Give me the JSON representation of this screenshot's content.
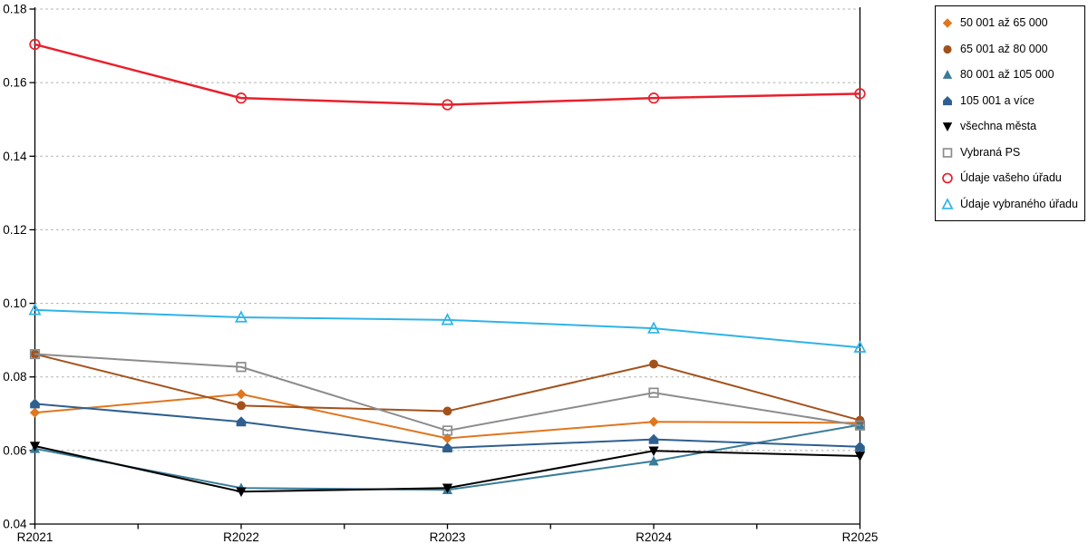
{
  "chart_data": {
    "type": "line",
    "title": "",
    "xlabel": "",
    "ylabel": "",
    "categories": [
      "R2021",
      "R2022",
      "R2023",
      "R2024",
      "R2025"
    ],
    "series": [
      {
        "name": "50 001 až 65 000",
        "marker": "diamond",
        "open": false,
        "color": "#E0761E",
        "values": [
          0.0703,
          0.0753,
          0.0633,
          0.0678,
          0.0675
        ]
      },
      {
        "name": "65 001 až 80 000",
        "marker": "circle",
        "open": false,
        "color": "#A3511C",
        "values": [
          0.0862,
          0.0722,
          0.0707,
          0.0835,
          0.0682
        ]
      },
      {
        "name": "80 001 až 105 000",
        "marker": "triangle-up",
        "open": false,
        "color": "#3A7C99",
        "values": [
          0.0605,
          0.0498,
          0.0493,
          0.0571,
          0.067
        ]
      },
      {
        "name": "105 001 a více",
        "marker": "pentagon",
        "open": false,
        "color": "#2E5F8F",
        "values": [
          0.0727,
          0.0678,
          0.0607,
          0.063,
          0.061
        ]
      },
      {
        "name": "všechna města",
        "marker": "triangle-down",
        "open": false,
        "color": "#000000",
        "values": [
          0.0612,
          0.0488,
          0.0498,
          0.0599,
          0.0585
        ]
      },
      {
        "name": "Vybraná PS",
        "marker": "square",
        "open": true,
        "color": "#8C8C8C",
        "values": [
          0.0862,
          0.0827,
          0.0654,
          0.0757,
          0.0668
        ]
      },
      {
        "name": "Údaje vašeho úřadu",
        "marker": "circle",
        "open": true,
        "color": "#E8202C",
        "values": [
          0.1704,
          0.1558,
          0.154,
          0.1558,
          0.157
        ]
      },
      {
        "name": "Údaje vybraného úřadu",
        "marker": "triangle-up",
        "open": true,
        "color": "#2FB3E8",
        "values": [
          0.0982,
          0.0962,
          0.0955,
          0.0932,
          0.088
        ]
      }
    ],
    "ylim": [
      0.04,
      0.18
    ],
    "ytick_step": 0.02,
    "ytick_labels": [
      "0.04",
      "0.06",
      "0.08",
      "0.10",
      "0.12",
      "0.14",
      "0.16",
      "0.18"
    ],
    "grid": "horizontal-dotted",
    "gridline_color": "#ABABAB",
    "axis_color": "#000000",
    "legend_position": "outside-top-right",
    "x_minor_ticks_between_labels": true
  }
}
